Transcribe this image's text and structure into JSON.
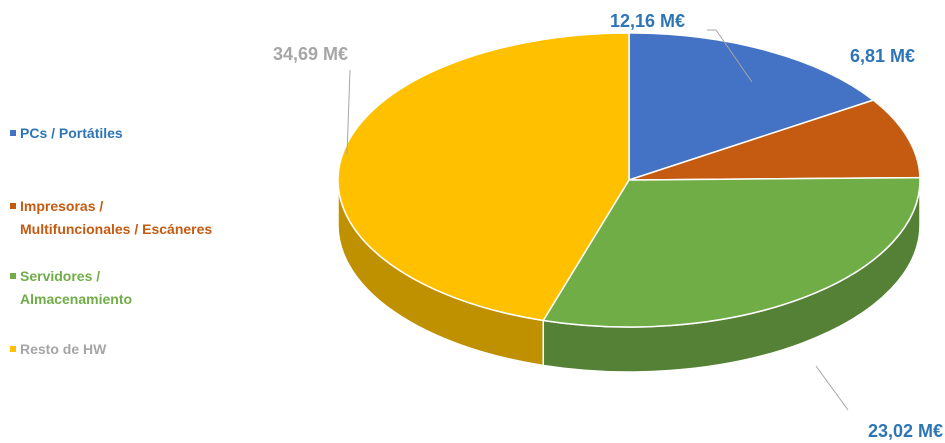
{
  "chart_data": {
    "type": "pie3d",
    "series": [
      {
        "name": "PCs / Portátiles",
        "color": "#4472c4",
        "label_color": "#2e75b6",
        "values": [
          12.16
        ],
        "value_labels": [
          "12,16 M€"
        ]
      },
      {
        "name": "Impresoras /\nMultifuncionales / Escáneres",
        "color": "#c55a11",
        "label_color": "#2e75b6",
        "values": [
          6.81
        ],
        "value_labels": [
          "6,81 M€"
        ]
      },
      {
        "name": "Servidores /\nAlmacenamiento",
        "color": "#70ad47",
        "label_color": "#2e75b6",
        "values": [
          23.02
        ],
        "value_labels": [
          "23,02 M€"
        ]
      },
      {
        "name": "Resto de HW",
        "color": "#ffc000",
        "label_color": "#a6a6a6",
        "values": [
          34.69
        ],
        "value_labels": [
          "34,69 M€"
        ]
      }
    ],
    "legend_text_colors": [
      "#2e75b6",
      "#c55a11",
      "#70ad47",
      "#a6a6a6"
    ],
    "legend": "left"
  }
}
